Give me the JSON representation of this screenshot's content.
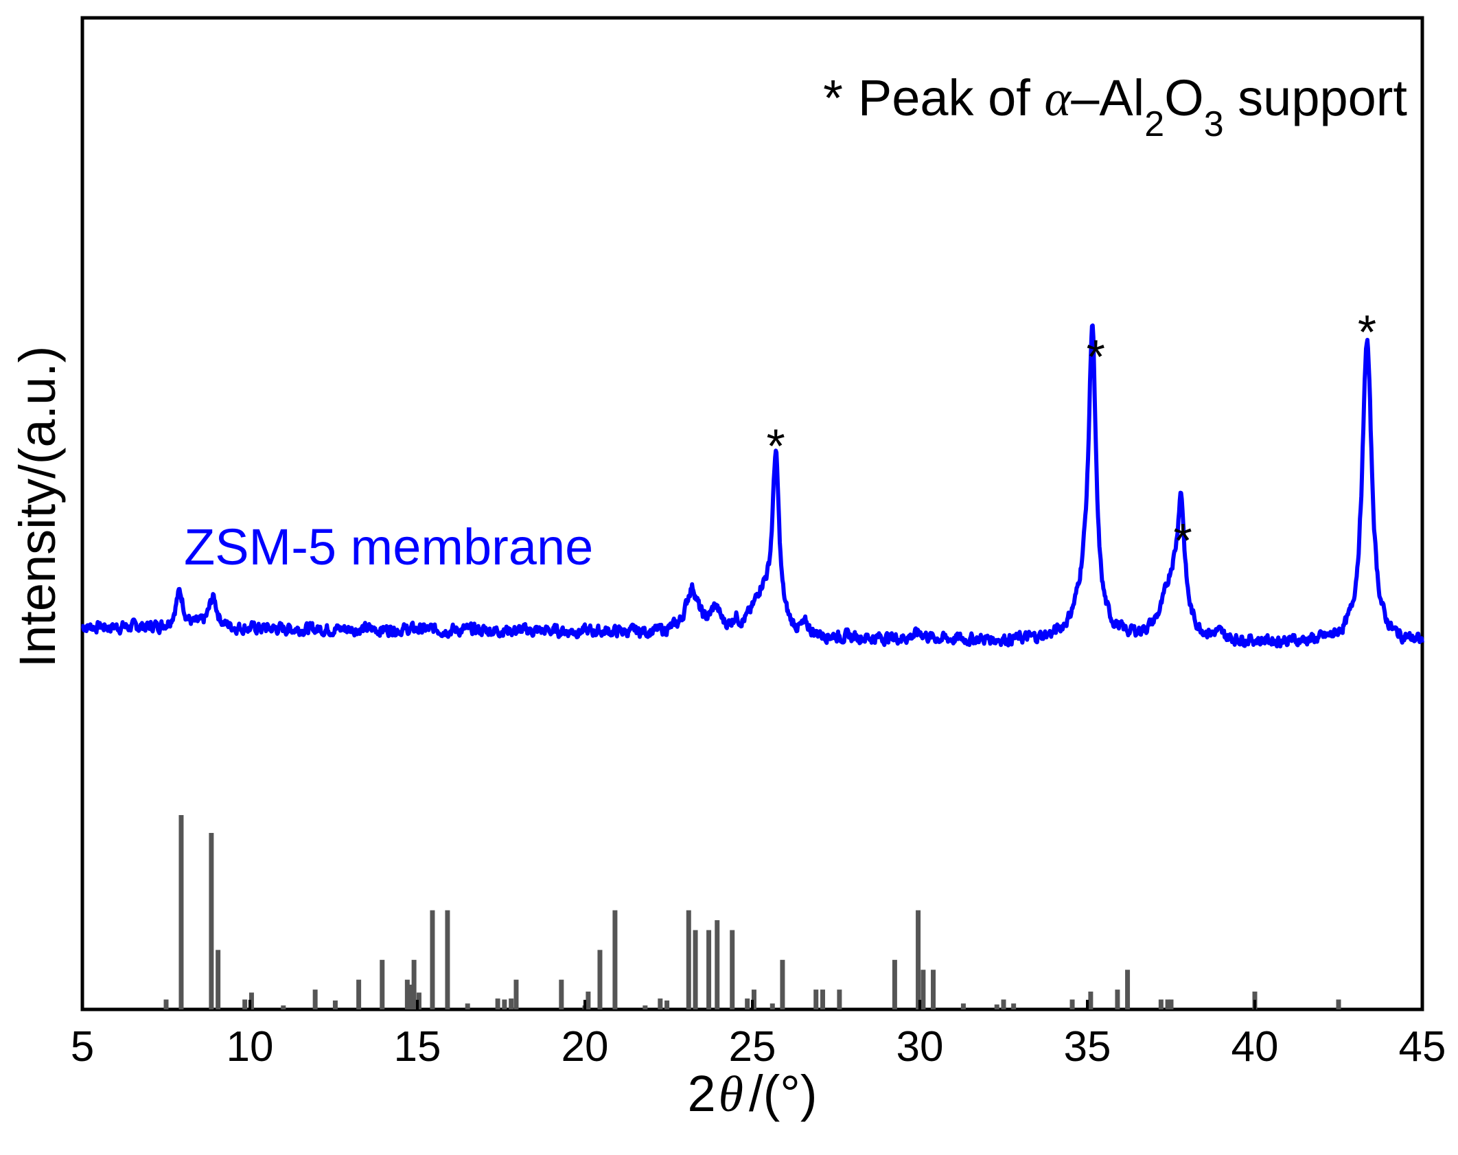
{
  "chart_data": {
    "type": "line",
    "title": "",
    "xlabel_prefix": "2",
    "xlabel_symbol": "θ",
    "xlabel_suffix": "/(°)",
    "ylabel": "Intensity/(a.u.)",
    "xlim": [
      5,
      45
    ],
    "ylim": [
      0,
      100
    ],
    "xticks": [
      "5",
      "10",
      "15",
      "20",
      "25",
      "30",
      "35",
      "40",
      "45"
    ],
    "legend_note": {
      "star": "*",
      "part1": "Peak of ",
      "alpha": "α",
      "part2": "–Al",
      "sub1": "2",
      "part3": "O",
      "sub2": "3",
      "part4": " support"
    },
    "series_label": "ZSM-5 membrane",
    "colors": {
      "series": "#0000ff",
      "reference": "#555555",
      "axis": "#000000"
    },
    "series": [
      {
        "name": "ZSM-5 membrane",
        "baseline": [
          [
            5,
            38.6
          ],
          [
            10,
            38.4
          ],
          [
            15,
            38.3
          ],
          [
            20,
            38.1
          ],
          [
            22.5,
            37.9
          ],
          [
            25,
            37.6
          ],
          [
            30,
            37.3
          ],
          [
            35,
            37.0
          ],
          [
            40,
            37.0
          ],
          [
            45,
            36.9
          ]
        ],
        "peaks": [
          {
            "x": 7.9,
            "h": 3.5,
            "w": 0.15
          },
          {
            "x": 8.9,
            "h": 3.0,
            "w": 0.15
          },
          {
            "x": 23.2,
            "h": 4.5,
            "w": 0.22
          },
          {
            "x": 23.9,
            "h": 2.2,
            "w": 0.18
          },
          {
            "x": 24.5,
            "h": 1.0,
            "w": 0.1
          },
          {
            "x": 25.3,
            "h": 4.0,
            "w": 0.35
          },
          {
            "x": 25.7,
            "h": 16.8,
            "w": 0.12
          },
          {
            "x": 26.6,
            "h": 0.8,
            "w": 0.12
          },
          {
            "x": 30.0,
            "h": 0.6,
            "w": 0.2
          },
          {
            "x": 35.0,
            "h": 6.0,
            "w": 0.35
          },
          {
            "x": 35.15,
            "h": 27.0,
            "w": 0.12
          },
          {
            "x": 37.55,
            "h": 6.0,
            "w": 0.35
          },
          {
            "x": 37.8,
            "h": 11.0,
            "w": 0.12
          },
          {
            "x": 38.9,
            "h": 0.5,
            "w": 0.15
          },
          {
            "x": 43.35,
            "h": 30.5,
            "w": 0.17
          }
        ]
      }
    ],
    "star_markers": [
      {
        "x": 25.7,
        "y": 57.5
      },
      {
        "x": 35.25,
        "y": 66.5
      },
      {
        "x": 37.85,
        "y": 48.0
      },
      {
        "x": 43.35,
        "y": 69.0
      }
    ],
    "reference_lines": [
      {
        "x": 7.5,
        "h": 1.0
      },
      {
        "x": 7.95,
        "h": 19.6
      },
      {
        "x": 8.85,
        "h": 17.8
      },
      {
        "x": 9.05,
        "h": 6.0
      },
      {
        "x": 9.85,
        "h": 1.0
      },
      {
        "x": 10.05,
        "h": 1.7
      },
      {
        "x": 11.0,
        "h": 0.4
      },
      {
        "x": 11.95,
        "h": 2.0
      },
      {
        "x": 12.55,
        "h": 0.9
      },
      {
        "x": 13.25,
        "h": 3.0
      },
      {
        "x": 13.95,
        "h": 5.0
      },
      {
        "x": 14.7,
        "h": 3.0
      },
      {
        "x": 14.8,
        "h": 2.5
      },
      {
        "x": 14.9,
        "h": 5.0
      },
      {
        "x": 15.05,
        "h": 1.7
      },
      {
        "x": 15.45,
        "h": 10.0
      },
      {
        "x": 15.9,
        "h": 10.0
      },
      {
        "x": 16.5,
        "h": 0.6
      },
      {
        "x": 17.4,
        "h": 1.1
      },
      {
        "x": 17.6,
        "h": 1.0
      },
      {
        "x": 17.8,
        "h": 1.1
      },
      {
        "x": 17.95,
        "h": 3.0
      },
      {
        "x": 19.3,
        "h": 3.0
      },
      {
        "x": 20.0,
        "h": 0.4
      },
      {
        "x": 20.1,
        "h": 1.8
      },
      {
        "x": 20.45,
        "h": 6.0
      },
      {
        "x": 20.9,
        "h": 10.0
      },
      {
        "x": 21.8,
        "h": 0.4
      },
      {
        "x": 22.25,
        "h": 1.1
      },
      {
        "x": 22.45,
        "h": 0.9
      },
      {
        "x": 23.1,
        "h": 10.0
      },
      {
        "x": 23.3,
        "h": 8.0
      },
      {
        "x": 23.7,
        "h": 8.0
      },
      {
        "x": 23.95,
        "h": 9.0
      },
      {
        "x": 24.4,
        "h": 8.0
      },
      {
        "x": 24.85,
        "h": 1.1
      },
      {
        "x": 25.05,
        "h": 2.0
      },
      {
        "x": 25.6,
        "h": 0.6
      },
      {
        "x": 25.9,
        "h": 5.0
      },
      {
        "x": 26.9,
        "h": 2.0
      },
      {
        "x": 27.1,
        "h": 2.0
      },
      {
        "x": 27.6,
        "h": 2.0
      },
      {
        "x": 29.25,
        "h": 5.0
      },
      {
        "x": 29.95,
        "h": 10.0
      },
      {
        "x": 30.1,
        "h": 4.0
      },
      {
        "x": 30.4,
        "h": 4.0
      },
      {
        "x": 31.3,
        "h": 0.6
      },
      {
        "x": 32.3,
        "h": 0.5
      },
      {
        "x": 32.5,
        "h": 1.0
      },
      {
        "x": 32.8,
        "h": 0.6
      },
      {
        "x": 34.55,
        "h": 1.0
      },
      {
        "x": 35.1,
        "h": 1.8
      },
      {
        "x": 35.9,
        "h": 2.0
      },
      {
        "x": 36.2,
        "h": 4.0
      },
      {
        "x": 37.2,
        "h": 1.0
      },
      {
        "x": 37.4,
        "h": 1.0
      },
      {
        "x": 37.5,
        "h": 1.0
      },
      {
        "x": 40.0,
        "h": 1.8
      },
      {
        "x": 42.5,
        "h": 1.0
      }
    ]
  }
}
